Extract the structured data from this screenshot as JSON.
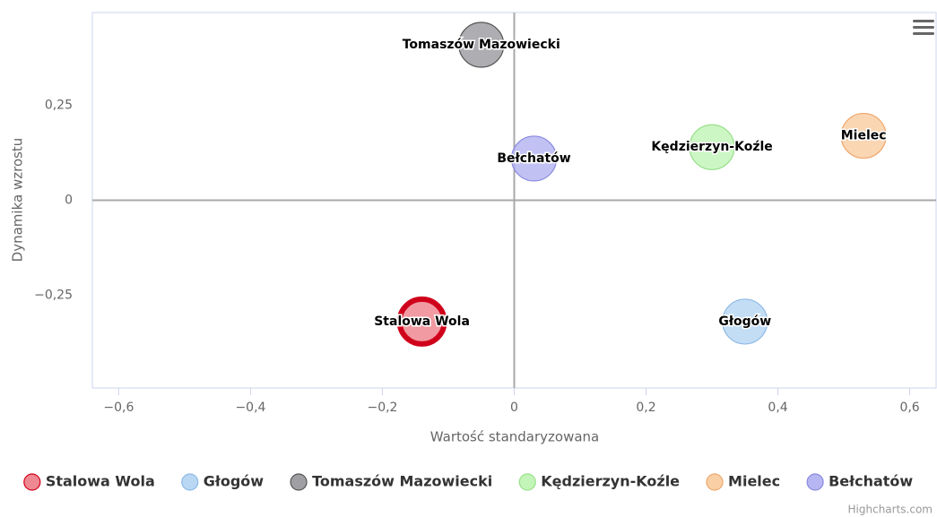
{
  "chart_data": {
    "type": "bubble",
    "x_label": "Wartość standaryzowana",
    "y_label": "Dynamika wzrostu",
    "credits": "Highcharts.com",
    "xlim": [
      -0.64,
      0.64
    ],
    "xticks": [
      {
        "value": -0.6,
        "label": "−0,6"
      },
      {
        "value": -0.4,
        "label": "−0,4"
      },
      {
        "value": -0.2,
        "label": "−0,2"
      },
      0,
      {
        "value": 0.2,
        "label": "0,2"
      },
      {
        "value": 0.4,
        "label": "0,4"
      },
      {
        "value": 0.6,
        "label": "0,6"
      }
    ],
    "ylim": [
      -0.495,
      0.495
    ],
    "yticks": [
      {
        "value": -0.25,
        "label": "−0,25"
      },
      0,
      {
        "value": 0.25,
        "label": "0,25"
      }
    ],
    "series": [
      {
        "name": "Stalowa Wola",
        "color": "#ee8892",
        "border": "#d0021b",
        "x": [
          -0.14
        ],
        "values": [
          -0.32
        ]
      },
      {
        "name": "Głogów",
        "color": "#b9d7f3",
        "border": "#8db9e6",
        "x": [
          0.35
        ],
        "values": [
          -0.32
        ]
      },
      {
        "name": "Tomaszów Mazowiecki",
        "color": "#a0a0a4",
        "border": "#555",
        "x": [
          -0.05
        ],
        "values": [
          0.41
        ]
      },
      {
        "name": "Kędzierzyn-Koźle",
        "color": "#c3f5b8",
        "border": "#98e08a",
        "x": [
          0.3
        ],
        "values": [
          0.14
        ]
      },
      {
        "name": "Mielec",
        "color": "#f9cfa6",
        "border": "#efa66a",
        "x": [
          0.53
        ],
        "values": [
          0.17
        ]
      },
      {
        "name": "Bełchatów",
        "color": "#b6b6f2",
        "border": "#8a8ae0",
        "x": [
          0.03
        ],
        "values": [
          0.11
        ]
      }
    ]
  }
}
